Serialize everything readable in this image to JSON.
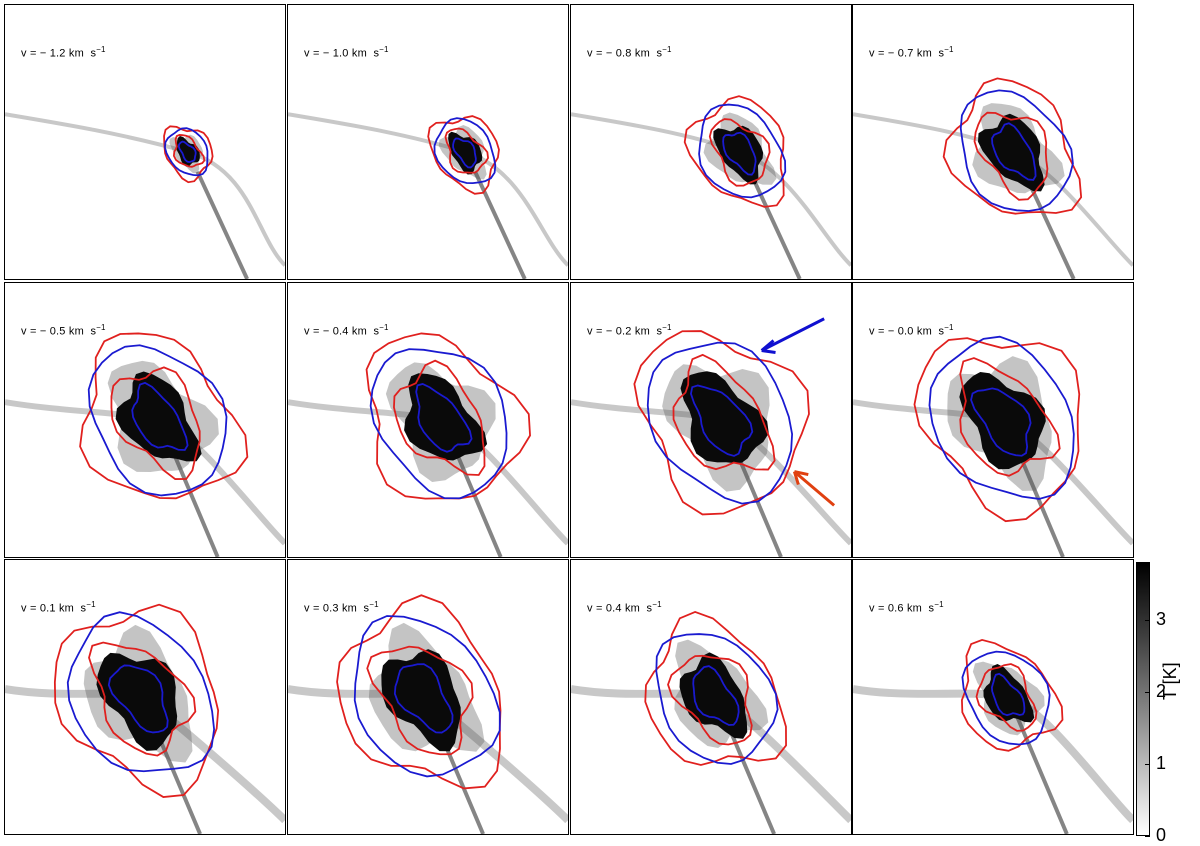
{
  "panels": [
    {
      "label": "v = − 1.2 km  s",
      "sup": "−1"
    },
    {
      "label": "v = − 1.0 km  s",
      "sup": "−1"
    },
    {
      "label": "v = − 0.8 km  s",
      "sup": "−1"
    },
    {
      "label": "v = − 0.7 km  s",
      "sup": "−1"
    },
    {
      "label": "v = − 0.5 km  s",
      "sup": "−1"
    },
    {
      "label": "v = − 0.4 km  s",
      "sup": "−1"
    },
    {
      "label": "v = − 0.2 km  s",
      "sup": "−1"
    },
    {
      "label": "v = − 0.0 km  s",
      "sup": "−1"
    },
    {
      "label": "v = 0.1 km  s",
      "sup": "−1"
    },
    {
      "label": "v = 0.3 km  s",
      "sup": "−1"
    },
    {
      "label": "v = 0.4 km  s",
      "sup": "−1"
    },
    {
      "label": "v = 0.6 km  s",
      "sup": "−1"
    }
  ],
  "colorbar": {
    "label": "T [K]",
    "ticks": [
      "0",
      "1",
      "2",
      "3"
    ]
  },
  "colors": {
    "red_contour": "#e0201e",
    "blue_contour": "#1a1ad0",
    "red_arrow": "#e04010",
    "blue_arrow": "#1010d0"
  }
}
